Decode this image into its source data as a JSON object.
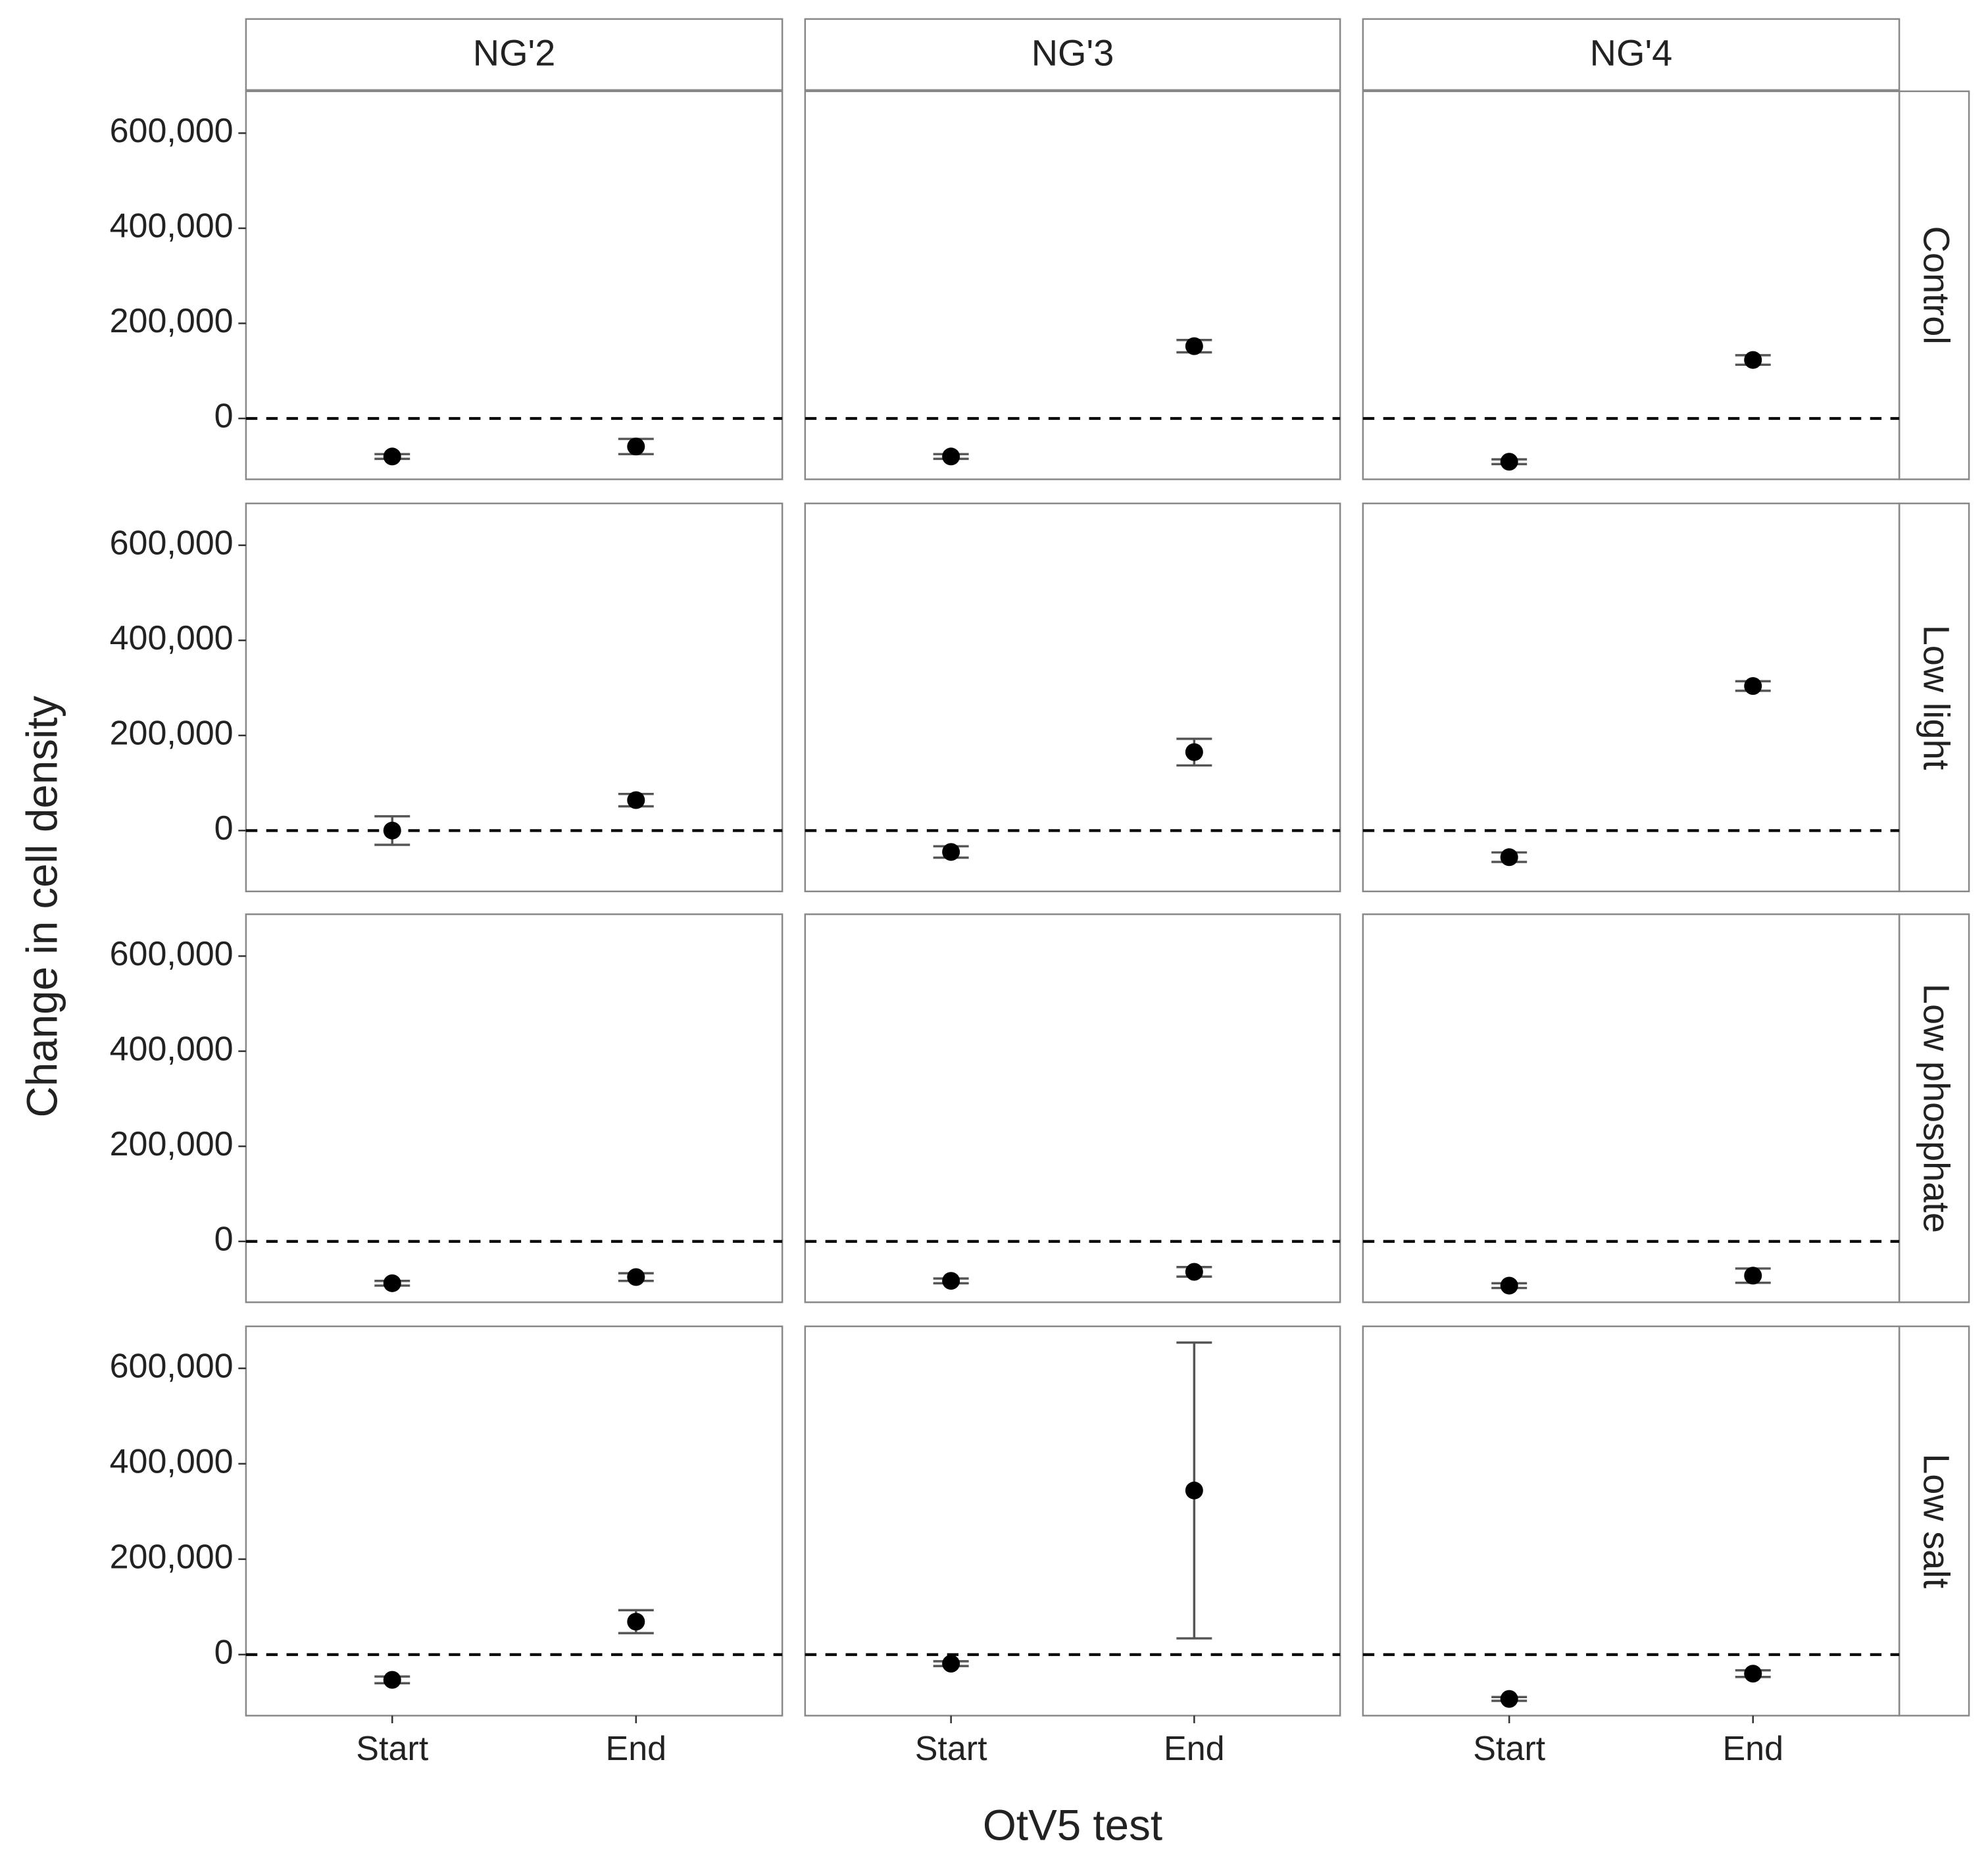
{
  "chart_data": {
    "type": "errorbar",
    "x_label": "OtV5 test",
    "y_label": "Change in cell density",
    "columns": [
      "NG'2",
      "NG'3",
      "NG'4"
    ],
    "rows": [
      "Control",
      "Low light",
      "Low phosphate",
      "Low salt"
    ],
    "categories": [
      "Start",
      "End"
    ],
    "ylim": [
      -128000,
      688000
    ],
    "yticks": [
      0,
      {
        "value": 200000,
        "label": "200,000"
      },
      {
        "value": 400000,
        "label": "400,000"
      },
      {
        "value": 600000,
        "label": "600,000"
      }
    ],
    "hline": 0,
    "color": "#000000",
    "grid": false,
    "panels": [
      [
        {
          "values": [
            -80000,
            -59000
          ],
          "errors": [
            5000,
            16000
          ]
        },
        {
          "values": [
            -80000,
            152000
          ],
          "errors": [
            5000,
            13000
          ]
        },
        {
          "values": [
            -91000,
            123000
          ],
          "errors": [
            5000,
            10000
          ]
        }
      ],
      [
        {
          "values": [
            0,
            64000
          ],
          "errors": [
            30000,
            13000
          ]
        },
        {
          "values": [
            -45000,
            165000
          ],
          "errors": [
            12000,
            28000
          ]
        },
        {
          "values": [
            -56000,
            304000
          ],
          "errors": [
            10000,
            10000
          ]
        }
      ],
      [
        {
          "values": [
            -88000,
            -75000
          ],
          "errors": [
            5000,
            8000
          ]
        },
        {
          "values": [
            -83000,
            -64000
          ],
          "errors": [
            5000,
            10000
          ]
        },
        {
          "values": [
            -93000,
            -72000
          ],
          "errors": [
            5000,
            15000
          ]
        }
      ],
      [
        {
          "values": [
            -53000,
            69000
          ],
          "errors": [
            7000,
            24000
          ]
        },
        {
          "values": [
            -19000,
            344000
          ],
          "errors": [
            5000,
            310000
          ]
        },
        {
          "values": [
            -93000,
            -40000
          ],
          "errors": [
            4000,
            7000
          ]
        }
      ]
    ]
  }
}
